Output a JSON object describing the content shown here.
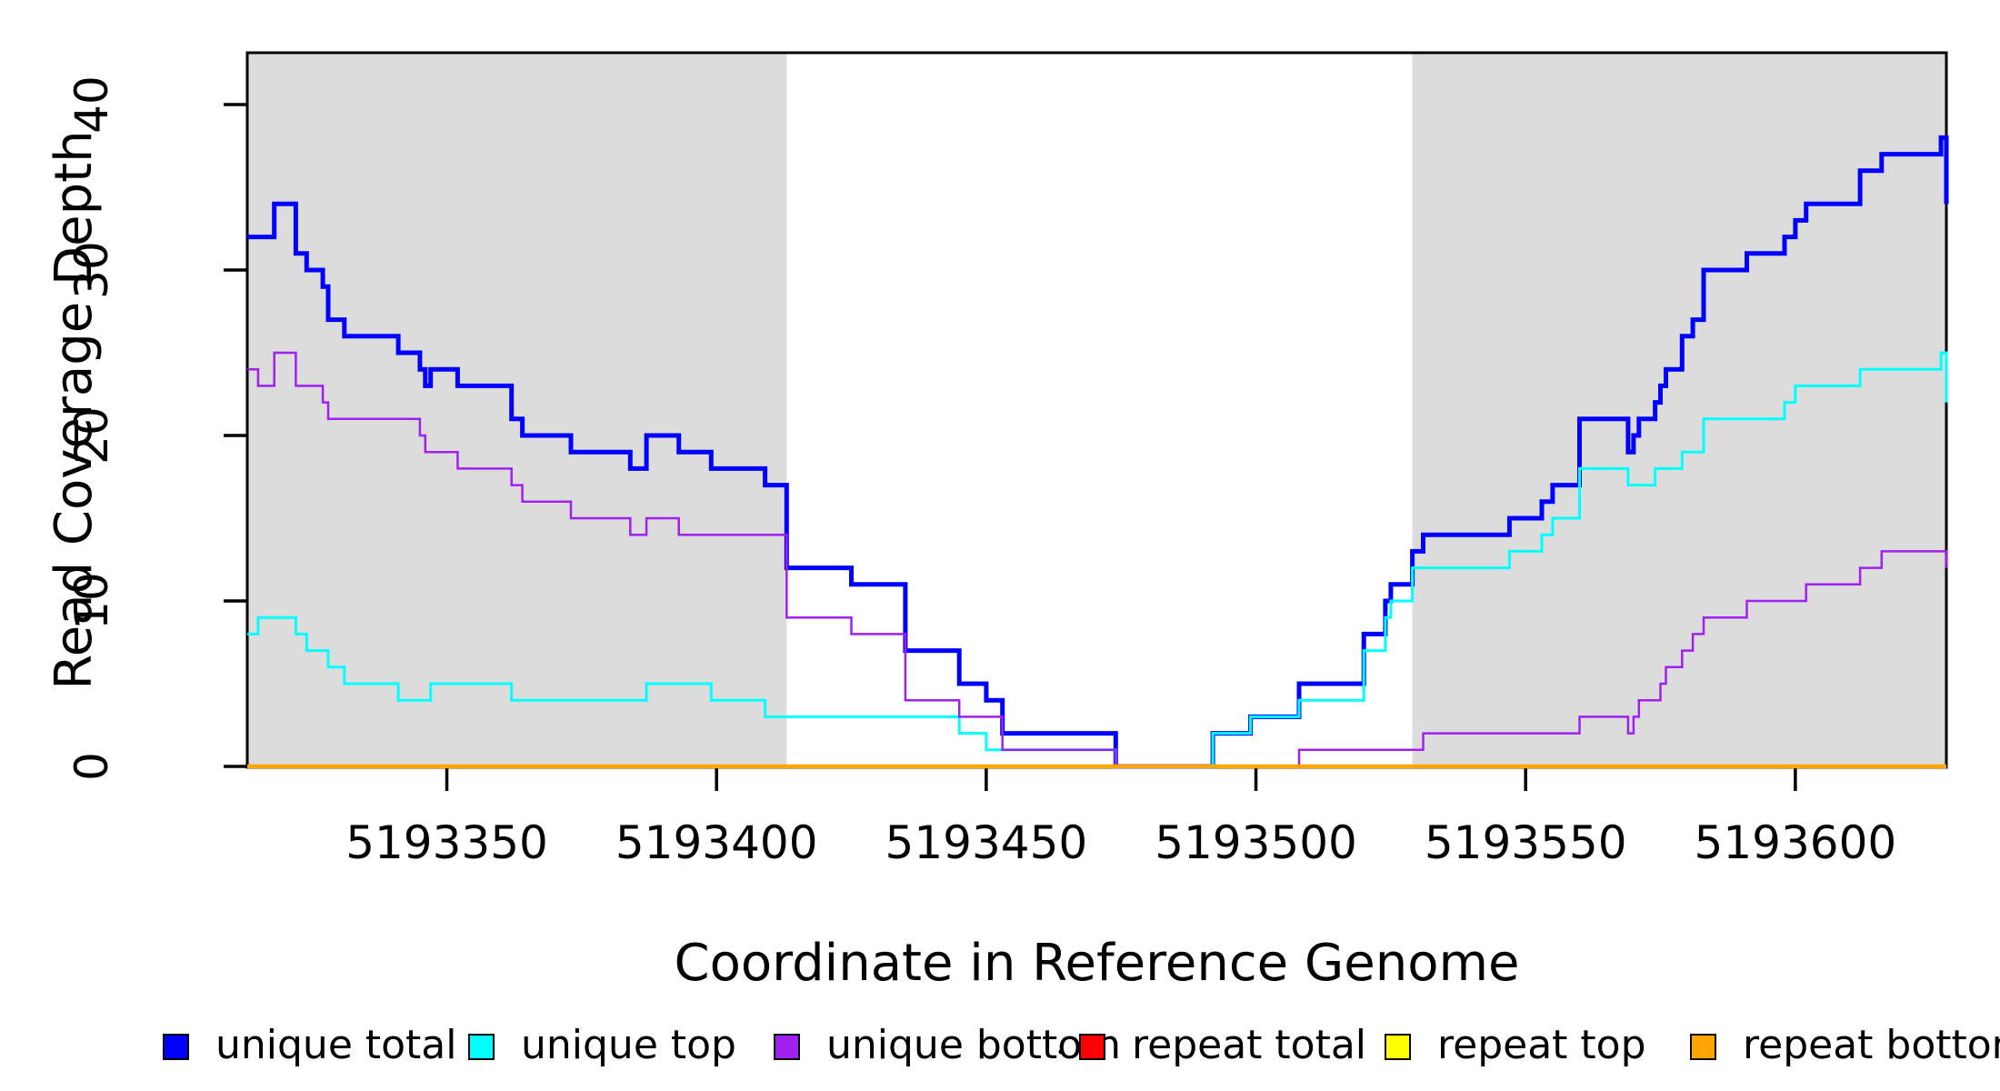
{
  "chart_data": {
    "type": "line",
    "subtype": "step-after",
    "title": "",
    "xlabel": "Coordinate in Reference Genome",
    "ylabel": "Read Coverage Depth",
    "xlim": [
      5193313,
      5193628
    ],
    "ylim": [
      0,
      43.1
    ],
    "x_ticks": [
      5193350,
      5193400,
      5193450,
      5193500,
      5193550,
      5193600
    ],
    "y_ticks": [
      0,
      10,
      20,
      30,
      40
    ],
    "grid": false,
    "legend_position": "bottom",
    "background_color": "#ffffff",
    "shaded_region_color": "#dcdcdc",
    "shaded_regions": [
      {
        "x0": 5193313,
        "x1": 5193413
      },
      {
        "x0": 5193529,
        "x1": 5193628
      }
    ],
    "series": [
      {
        "name": "unique total",
        "color": "#0000ff",
        "line_width": 5,
        "points": [
          [
            5193313,
            32
          ],
          [
            5193318,
            34
          ],
          [
            5193322,
            31
          ],
          [
            5193324,
            30
          ],
          [
            5193327,
            29
          ],
          [
            5193328,
            27
          ],
          [
            5193331,
            26
          ],
          [
            5193341,
            25
          ],
          [
            5193345,
            24
          ],
          [
            5193346,
            23
          ],
          [
            5193347,
            24
          ],
          [
            5193352,
            23
          ],
          [
            5193362,
            21
          ],
          [
            5193364,
            20
          ],
          [
            5193373,
            19
          ],
          [
            5193384,
            18
          ],
          [
            5193387,
            20
          ],
          [
            5193393,
            19
          ],
          [
            5193399,
            18
          ],
          [
            5193409,
            17
          ],
          [
            5193413,
            12
          ],
          [
            5193425,
            11
          ],
          [
            5193435,
            7
          ],
          [
            5193445,
            5
          ],
          [
            5193450,
            4
          ],
          [
            5193453,
            2
          ],
          [
            5193474,
            0
          ],
          [
            5193492,
            2
          ],
          [
            5193499,
            3
          ],
          [
            5193508,
            5
          ],
          [
            5193520,
            8
          ],
          [
            5193524,
            10
          ],
          [
            5193525,
            11
          ],
          [
            5193529,
            13
          ],
          [
            5193531,
            14
          ],
          [
            5193547,
            15
          ],
          [
            5193553,
            16
          ],
          [
            5193555,
            17
          ],
          [
            5193560,
            21
          ],
          [
            5193569,
            19
          ],
          [
            5193570,
            20
          ],
          [
            5193571,
            21
          ],
          [
            5193574,
            22
          ],
          [
            5193575,
            23
          ],
          [
            5193576,
            24
          ],
          [
            5193579,
            26
          ],
          [
            5193581,
            27
          ],
          [
            5193583,
            30
          ],
          [
            5193591,
            31
          ],
          [
            5193598,
            32
          ],
          [
            5193600,
            33
          ],
          [
            5193602,
            34
          ],
          [
            5193612,
            36
          ],
          [
            5193616,
            37
          ],
          [
            5193627,
            38
          ],
          [
            5193628,
            34
          ]
        ]
      },
      {
        "name": "unique top",
        "color": "#00ffff",
        "line_width": 3,
        "points": [
          [
            5193313,
            8
          ],
          [
            5193315,
            9
          ],
          [
            5193322,
            8
          ],
          [
            5193324,
            7
          ],
          [
            5193328,
            6
          ],
          [
            5193331,
            5
          ],
          [
            5193341,
            4
          ],
          [
            5193347,
            5
          ],
          [
            5193362,
            4
          ],
          [
            5193387,
            5
          ],
          [
            5193399,
            4
          ],
          [
            5193409,
            3
          ],
          [
            5193445,
            2
          ],
          [
            5193450,
            1
          ],
          [
            5193474,
            0
          ],
          [
            5193492,
            2
          ],
          [
            5193499,
            3
          ],
          [
            5193508,
            4
          ],
          [
            5193520,
            7
          ],
          [
            5193524,
            9
          ],
          [
            5193525,
            10
          ],
          [
            5193529,
            12
          ],
          [
            5193547,
            13
          ],
          [
            5193553,
            14
          ],
          [
            5193555,
            15
          ],
          [
            5193560,
            18
          ],
          [
            5193569,
            17
          ],
          [
            5193574,
            18
          ],
          [
            5193579,
            19
          ],
          [
            5193583,
            21
          ],
          [
            5193598,
            22
          ],
          [
            5193600,
            23
          ],
          [
            5193612,
            24
          ],
          [
            5193627,
            25
          ],
          [
            5193628,
            22
          ]
        ]
      },
      {
        "name": "unique bottom",
        "color": "#a020f0",
        "line_width": 2.5,
        "points": [
          [
            5193313,
            24
          ],
          [
            5193315,
            23
          ],
          [
            5193318,
            25
          ],
          [
            5193322,
            23
          ],
          [
            5193327,
            22
          ],
          [
            5193328,
            21
          ],
          [
            5193345,
            20
          ],
          [
            5193346,
            19
          ],
          [
            5193352,
            18
          ],
          [
            5193362,
            17
          ],
          [
            5193364,
            16
          ],
          [
            5193373,
            15
          ],
          [
            5193384,
            14
          ],
          [
            5193387,
            15
          ],
          [
            5193393,
            14
          ],
          [
            5193413,
            9
          ],
          [
            5193425,
            8
          ],
          [
            5193435,
            4
          ],
          [
            5193445,
            3
          ],
          [
            5193453,
            1
          ],
          [
            5193474,
            0
          ],
          [
            5193508,
            1
          ],
          [
            5193531,
            2
          ],
          [
            5193560,
            3
          ],
          [
            5193569,
            2
          ],
          [
            5193570,
            3
          ],
          [
            5193571,
            4
          ],
          [
            5193575,
            5
          ],
          [
            5193576,
            6
          ],
          [
            5193579,
            7
          ],
          [
            5193581,
            8
          ],
          [
            5193583,
            9
          ],
          [
            5193591,
            10
          ],
          [
            5193602,
            11
          ],
          [
            5193612,
            12
          ],
          [
            5193616,
            13
          ],
          [
            5193628,
            12
          ]
        ]
      },
      {
        "name": "repeat total",
        "color": "#ff0000",
        "line_width": 2.5,
        "points": [
          [
            5193313,
            0
          ],
          [
            5193628,
            0
          ]
        ]
      },
      {
        "name": "repeat top",
        "color": "#ffff00",
        "line_width": 2.5,
        "points": [
          [
            5193313,
            0
          ],
          [
            5193628,
            0
          ]
        ]
      },
      {
        "name": "repeat bottom",
        "color": "#ffa500",
        "line_width": 4.5,
        "points": [
          [
            5193313,
            0
          ],
          [
            5193628,
            0
          ]
        ]
      }
    ],
    "legend": [
      {
        "label": "unique total",
        "color": "#0000ff"
      },
      {
        "label": "unique top",
        "color": "#00ffff"
      },
      {
        "label": "unique bottom",
        "color": "#a020f0"
      },
      {
        "label": "repeat total",
        "color": "#ff0000"
      },
      {
        "label": "repeat top",
        "color": "#ffff00"
      },
      {
        "label": "repeat bottom",
        "color": "#ffa500"
      }
    ]
  }
}
